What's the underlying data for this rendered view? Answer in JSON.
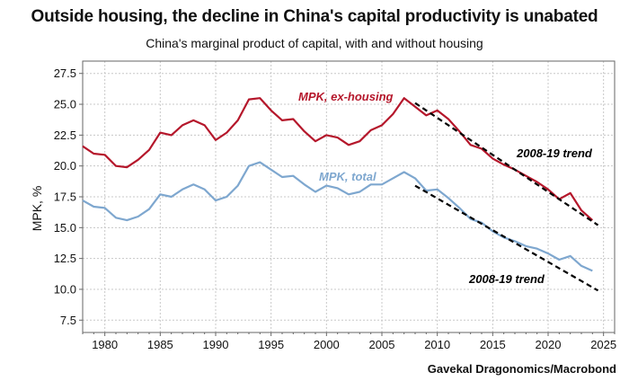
{
  "title": "Outside housing, the decline in China's capital productivity is unabated",
  "subtitle": "China's marginal product of capital, with and without housing",
  "source": "Gavekal Dragonomics/Macrobond",
  "colors": {
    "ex_housing": "#b5172b",
    "total": "#7ea7cf",
    "trend": "#000000",
    "grid": "#c8c8c8"
  },
  "chart_data": {
    "type": "line",
    "ylabel": "MPK, %",
    "xlabel": "",
    "xlim": [
      1978,
      2026
    ],
    "ylim": [
      6.5,
      28.5
    ],
    "grid": true,
    "x_ticks": [
      1980,
      1985,
      1990,
      1995,
      2000,
      2005,
      2010,
      2015,
      2020,
      2025
    ],
    "y_ticks": [
      7.5,
      10.0,
      12.5,
      15.0,
      17.5,
      20.0,
      22.5,
      25.0,
      27.5
    ],
    "x": [
      1978,
      1979,
      1980,
      1981,
      1982,
      1983,
      1984,
      1985,
      1986,
      1987,
      1988,
      1989,
      1990,
      1991,
      1992,
      1993,
      1994,
      1995,
      1996,
      1997,
      1998,
      1999,
      2000,
      2001,
      2002,
      2003,
      2004,
      2005,
      2006,
      2007,
      2008,
      2009,
      2010,
      2011,
      2012,
      2013,
      2014,
      2015,
      2016,
      2017,
      2018,
      2019,
      2020,
      2021,
      2022,
      2023,
      2024
    ],
    "series": [
      {
        "name": "MPK, ex-housing",
        "values": [
          21.6,
          21.0,
          20.9,
          20.0,
          19.9,
          20.5,
          21.3,
          22.7,
          22.5,
          23.3,
          23.7,
          23.3,
          22.1,
          22.7,
          23.7,
          25.4,
          25.5,
          24.5,
          23.7,
          23.8,
          22.8,
          22.0,
          22.5,
          22.3,
          21.7,
          22.0,
          22.9,
          23.3,
          24.2,
          25.5,
          24.8,
          24.1,
          24.5,
          23.8,
          22.8,
          21.7,
          21.4,
          20.6,
          20.1,
          19.7,
          19.2,
          18.7,
          18.1,
          17.3,
          17.8,
          16.4,
          15.6
        ]
      },
      {
        "name": "MPK, total",
        "values": [
          17.2,
          16.7,
          16.6,
          15.8,
          15.6,
          15.9,
          16.5,
          17.7,
          17.5,
          18.1,
          18.5,
          18.1,
          17.2,
          17.5,
          18.4,
          20.0,
          20.3,
          19.7,
          19.1,
          19.2,
          18.5,
          17.9,
          18.4,
          18.2,
          17.7,
          17.9,
          18.5,
          18.5,
          19.0,
          19.5,
          19.0,
          18.0,
          18.1,
          17.4,
          16.6,
          15.7,
          15.4,
          14.7,
          14.2,
          13.9,
          13.5,
          13.3,
          12.9,
          12.4,
          12.7,
          11.9,
          11.5
        ]
      }
    ],
    "trends": [
      {
        "label": "2008-19 trend",
        "x": [
          2008,
          2024.5
        ],
        "y": [
          25.1,
          15.2
        ]
      },
      {
        "label": "2008-19 trend",
        "x": [
          2008,
          2024.5
        ],
        "y": [
          18.4,
          9.9
        ]
      }
    ],
    "annotations": [
      {
        "text": "MPK, ex-housing",
        "series": "ex-housing"
      },
      {
        "text": "MPK, total",
        "series": "total"
      }
    ]
  }
}
